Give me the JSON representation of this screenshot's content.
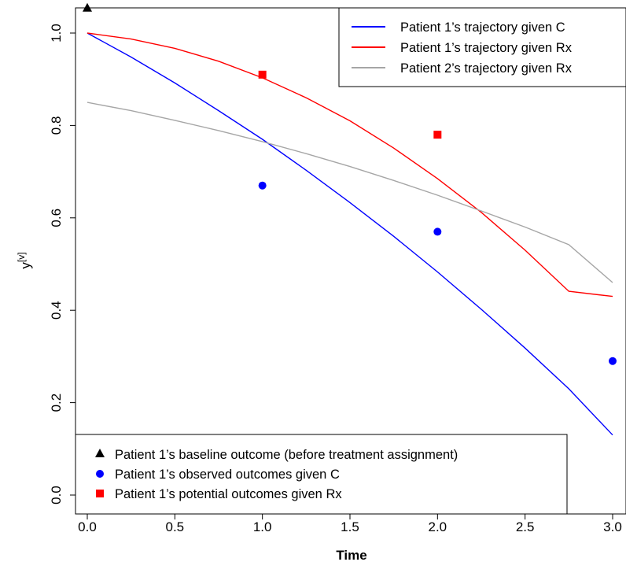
{
  "chart_data": {
    "type": "line",
    "title": "",
    "xlabel": "Time",
    "ylabel": "y",
    "ylabel_superscript": "[v]",
    "xlim": [
      0,
      3
    ],
    "ylim": [
      0,
      1.1
    ],
    "x_ticks": [
      0,
      0.5,
      1,
      1.5,
      2,
      2.5,
      3
    ],
    "x_tick_labels": [
      "0.0",
      "0.5",
      "1.0",
      "1.5",
      "2.0",
      "2.5",
      "3.0"
    ],
    "y_ticks": [
      0,
      0.2,
      0.4,
      0.6,
      0.8,
      1.0
    ],
    "y_tick_labels": [
      "0.0",
      "0.2",
      "0.4",
      "0.6",
      "0.8",
      "1.0"
    ],
    "grid": false,
    "series": [
      {
        "name": "Patient 1’s trajectory given C",
        "color": "#0000ff",
        "x": [
          0,
          0.25,
          0.5,
          0.75,
          1,
          1.25,
          1.5,
          1.75,
          2,
          2.25,
          2.5,
          2.75,
          3
        ],
        "y": [
          1.0,
          0.948,
          0.892,
          0.832,
          0.77,
          0.703,
          0.633,
          0.56,
          0.483,
          0.402,
          0.318,
          0.23,
          0.13
        ]
      },
      {
        "name": "Patient 1’s trajectory given Rx",
        "color": "#ff0000",
        "x": [
          0,
          0.25,
          0.5,
          0.75,
          1,
          1.25,
          1.5,
          1.75,
          2,
          2.25,
          2.5,
          2.75,
          3
        ],
        "y": [
          1.0,
          0.987,
          0.967,
          0.939,
          0.903,
          0.86,
          0.81,
          0.751,
          0.685,
          0.612,
          0.53,
          0.441,
          0.43
        ]
      },
      {
        "name": "Patient 2’s trajectory given Rx",
        "color": "#a6a6a6",
        "x": [
          0,
          0.25,
          0.5,
          0.75,
          1,
          1.25,
          1.5,
          1.75,
          2,
          2.25,
          2.5,
          2.75,
          3
        ],
        "y": [
          0.85,
          0.832,
          0.811,
          0.789,
          0.765,
          0.739,
          0.711,
          0.681,
          0.649,
          0.615,
          0.58,
          0.542,
          0.46
        ]
      }
    ],
    "points": [
      {
        "name": "Patient 1’s baseline outcome (before treatment assignment)",
        "marker": "triangle",
        "color": "#000000",
        "x": [
          0
        ],
        "y": [
          1.055
        ]
      },
      {
        "name": "Patient 1’s observed outcomes given C",
        "marker": "circle",
        "color": "#0000ff",
        "x": [
          1,
          2,
          3
        ],
        "y": [
          0.67,
          0.57,
          0.29
        ]
      },
      {
        "name": "Patient 1’s potential outcomes given Rx",
        "marker": "square",
        "color": "#ff0000",
        "x": [
          1,
          2
        ],
        "y": [
          0.91,
          0.78
        ]
      }
    ],
    "line_legend_placement": "top-right",
    "point_legend_placement": "bottom-left"
  }
}
